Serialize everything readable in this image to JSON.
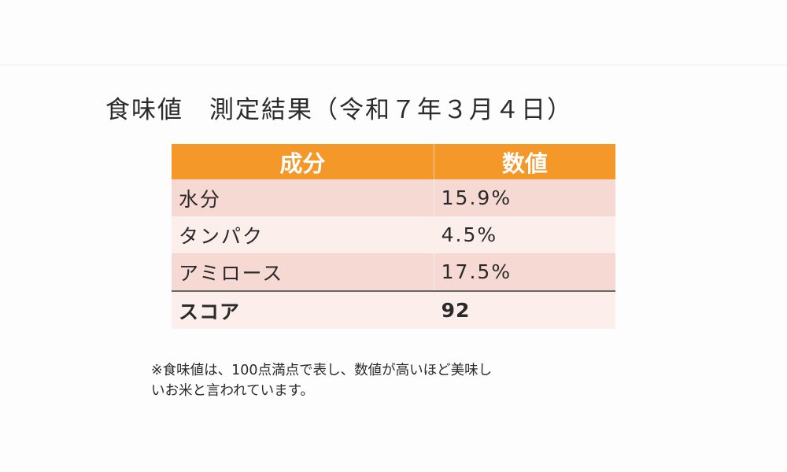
{
  "title": "食味値　測定結果（令和７年３月４日）",
  "table": {
    "headers": [
      "成分",
      "数値"
    ],
    "rows": [
      {
        "name": "水分",
        "value": "15.9%"
      },
      {
        "name": "タンパク",
        "value": "4.5%"
      },
      {
        "name": "アミロース",
        "value": "17.5%"
      },
      {
        "name": "スコア",
        "value": "92"
      }
    ]
  },
  "note": {
    "line1": "※食味値は、100点満点で表し、数値が高いほど美味し",
    "line2": "いお米と言われています。"
  },
  "colors": {
    "header": "#f5982a",
    "row_dark": "#f7d9d3",
    "row_light": "#fbeeeb"
  }
}
